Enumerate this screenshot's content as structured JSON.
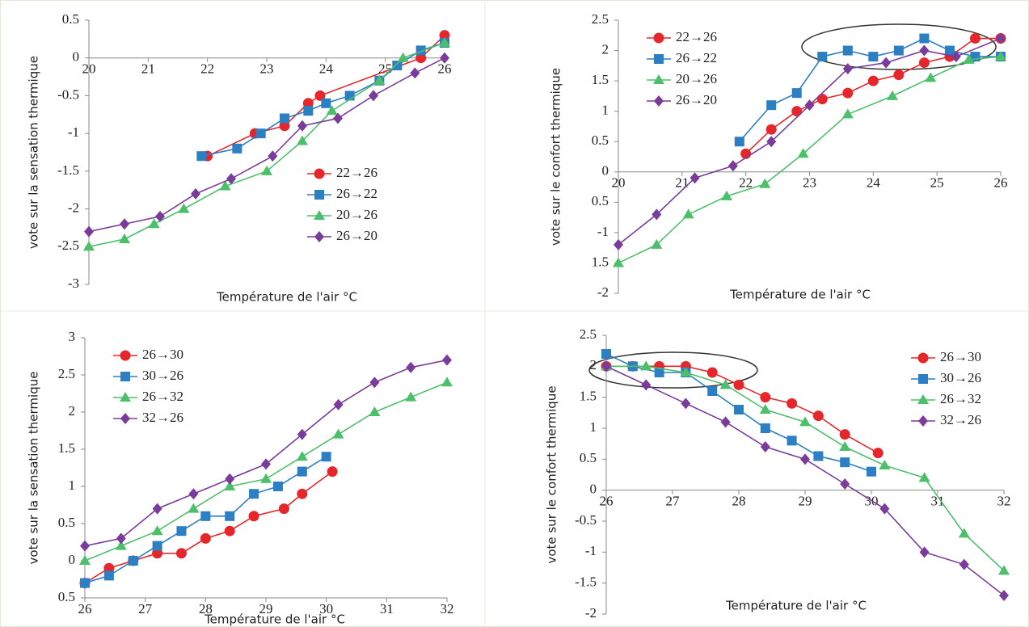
{
  "chart_data": [
    {
      "type": "line",
      "y_label": "vote sur la sensation thermique",
      "x_label": "Température de l'air °C",
      "xlim": [
        20,
        26
      ],
      "xticks": [
        20,
        21,
        22,
        23,
        24,
        25,
        26
      ],
      "ylim": [
        -3,
        0.5
      ],
      "yticks": [
        0.5,
        0,
        -0.5,
        -1,
        -1.5,
        -2,
        -2.5,
        -3
      ],
      "x_axis_at": 0,
      "legend": "lower right",
      "series": [
        {
          "name": "22→26",
          "color": "#e5262b",
          "marker": "circle",
          "x": [
            22,
            22.8,
            23.3,
            23.7,
            23.9,
            25.6,
            26
          ],
          "values": [
            -1.3,
            -1,
            -0.9,
            -0.6,
            -0.5,
            0,
            0.3
          ]
        },
        {
          "name": "26→22",
          "color": "#2b7fc2",
          "marker": "square",
          "x": [
            21.9,
            22.5,
            22.9,
            23.3,
            23.7,
            24,
            24.4,
            24.9,
            25.2,
            25.6,
            26
          ],
          "values": [
            -1.3,
            -1.2,
            -1,
            -0.8,
            -0.7,
            -0.6,
            -0.5,
            -0.3,
            -0.1,
            0.1,
            0.2
          ]
        },
        {
          "name": "20→26",
          "color": "#4cbf6b",
          "marker": "triangle",
          "x": [
            20,
            20.6,
            21.1,
            21.6,
            22.3,
            23,
            23.6,
            24.1,
            24.9,
            25.3,
            26
          ],
          "values": [
            -2.5,
            -2.4,
            -2.2,
            -2,
            -1.7,
            -1.5,
            -1.1,
            -0.7,
            -0.3,
            0,
            0.2
          ]
        },
        {
          "name": "26→20",
          "color": "#7a3c9a",
          "marker": "diamond",
          "x": [
            20,
            20.6,
            21.2,
            21.8,
            22.4,
            23.1,
            23.6,
            24.2,
            24.8,
            25.5,
            26
          ],
          "values": [
            -2.3,
            -2.2,
            -2.1,
            -1.8,
            -1.6,
            -1.3,
            -0.9,
            -0.8,
            -0.5,
            -0.2,
            0
          ]
        }
      ]
    },
    {
      "type": "line",
      "y_label": "vote sur le confort thermique",
      "x_label": "Température de l'air °C",
      "xlim": [
        20,
        26
      ],
      "xticks": [
        20,
        21,
        22,
        23,
        24,
        25,
        26
      ],
      "ylim": [
        -2,
        2.5
      ],
      "yticks": [
        2.5,
        2,
        1.5,
        1,
        0.5,
        0,
        {
          "value": -0.5,
          "label": "0.5"
        },
        -1,
        {
          "value": -1.5,
          "label": "1.5"
        },
        -2
      ],
      "x_axis_at": 0,
      "legend": "upper left",
      "series": [
        {
          "name": "22→26",
          "color": "#e5262b",
          "marker": "circle",
          "x": [
            22,
            22.4,
            22.8,
            23.2,
            23.6,
            24,
            24.4,
            24.8,
            25.2,
            25.6,
            26
          ],
          "values": [
            0.3,
            0.7,
            1,
            1.2,
            1.3,
            1.5,
            1.6,
            1.8,
            1.9,
            2.2,
            2.2
          ]
        },
        {
          "name": "26→22",
          "color": "#2b7fc2",
          "marker": "square",
          "x": [
            21.9,
            22.4,
            22.8,
            23.2,
            23.6,
            24,
            24.4,
            24.8,
            25.2,
            25.6,
            26
          ],
          "values": [
            0.5,
            1.1,
            1.3,
            1.9,
            2,
            1.9,
            2,
            2.2,
            2,
            1.9,
            1.9
          ]
        },
        {
          "name": "20→26",
          "color": "#4cbf6b",
          "marker": "triangle",
          "x": [
            20,
            20.6,
            21.1,
            21.7,
            22.3,
            22.9,
            23.6,
            24.3,
            24.9,
            25.5,
            26
          ],
          "values": [
            -1.5,
            -1.2,
            -0.7,
            -0.4,
            -0.2,
            0.3,
            0.95,
            1.25,
            1.55,
            1.85,
            1.9
          ]
        },
        {
          "name": "26→20",
          "color": "#7a3c9a",
          "marker": "diamond",
          "x": [
            20,
            20.6,
            21.2,
            21.8,
            22.4,
            23,
            23.6,
            24.2,
            24.8,
            25.3,
            26
          ],
          "values": [
            -1.2,
            -0.7,
            -0.1,
            0.1,
            0.5,
            1.1,
            1.7,
            1.8,
            2,
            1.9,
            2.2
          ]
        }
      ]
    },
    {
      "type": "line",
      "y_label": "vote sur la sensation thermique",
      "x_label": "Température de l'air °C",
      "xlim": [
        26,
        32
      ],
      "xticks": [
        26,
        27,
        28,
        29,
        30,
        31,
        32
      ],
      "ylim": [
        -0.5,
        3
      ],
      "yticks": [
        3,
        2.5,
        2,
        1.5,
        1,
        0.5,
        0,
        {
          "value": -0.5,
          "label": "0.5"
        }
      ],
      "legend": "upper left",
      "series": [
        {
          "name": "26→30",
          "color": "#e5262b",
          "marker": "circle",
          "x": [
            26,
            26.4,
            26.8,
            27.2,
            27.6,
            28,
            28.4,
            28.8,
            29.3,
            29.6,
            30.1
          ],
          "values": [
            -0.3,
            -0.1,
            0,
            0.1,
            0.1,
            0.3,
            0.4,
            0.6,
            0.7,
            0.9,
            1.2
          ]
        },
        {
          "name": "30→26",
          "color": "#2b7fc2",
          "marker": "square",
          "x": [
            26,
            26.4,
            26.8,
            27.2,
            27.6,
            28,
            28.4,
            28.8,
            29.2,
            29.6,
            30
          ],
          "values": [
            -0.3,
            -0.2,
            0,
            0.2,
            0.4,
            0.6,
            0.6,
            0.9,
            1,
            1.2,
            1.4
          ]
        },
        {
          "name": "26→32",
          "color": "#4cbf6b",
          "marker": "triangle",
          "x": [
            26,
            26.6,
            27.2,
            27.8,
            28.4,
            29,
            29.6,
            30.2,
            30.8,
            31.4,
            32
          ],
          "values": [
            0,
            0.2,
            0.4,
            0.7,
            1,
            1.1,
            1.4,
            1.7,
            2,
            2.2,
            2.4
          ]
        },
        {
          "name": "32→26",
          "color": "#7a3c9a",
          "marker": "diamond",
          "x": [
            26,
            26.6,
            27.2,
            27.8,
            28.4,
            29,
            29.6,
            30.2,
            30.8,
            31.4,
            32
          ],
          "values": [
            0.2,
            0.3,
            0.7,
            0.9,
            1.1,
            1.3,
            1.7,
            2.1,
            2.4,
            2.6,
            2.7
          ]
        }
      ]
    },
    {
      "type": "line",
      "y_label": "vote sur le confort thermique",
      "x_label": "Température de l'air °C",
      "xlim": [
        26,
        32
      ],
      "xticks": [
        26,
        27,
        28,
        29,
        30,
        31,
        32
      ],
      "ylim": [
        -2,
        2.5
      ],
      "yticks": [
        2.5,
        2,
        1.5,
        1,
        0.5,
        0,
        -0.5,
        -1,
        -1.5,
        -2
      ],
      "x_axis_at": 0,
      "legend": "upper right",
      "series": [
        {
          "name": "26→30",
          "color": "#e5262b",
          "marker": "circle",
          "x": [
            26,
            26.4,
            26.8,
            27.2,
            27.6,
            28,
            28.4,
            28.8,
            29.2,
            29.6,
            30.1
          ],
          "values": [
            2,
            2,
            2,
            2,
            1.9,
            1.7,
            1.5,
            1.4,
            1.2,
            0.9,
            0.6
          ]
        },
        {
          "name": "30→26",
          "color": "#2b7fc2",
          "marker": "square",
          "x": [
            26,
            26.4,
            26.8,
            27.2,
            27.6,
            28,
            28.4,
            28.8,
            29.2,
            29.6,
            30
          ],
          "values": [
            2.2,
            2,
            1.9,
            1.9,
            1.6,
            1.3,
            1,
            0.8,
            0.55,
            0.45,
            0.3
          ]
        },
        {
          "name": "26→32",
          "color": "#4cbf6b",
          "marker": "triangle",
          "x": [
            26,
            26.6,
            27.2,
            27.8,
            28.4,
            29,
            29.6,
            30.2,
            30.8,
            31.4,
            32
          ],
          "values": [
            2,
            2,
            1.9,
            1.7,
            1.3,
            1.1,
            0.7,
            0.4,
            0.2,
            -0.7,
            -1.3
          ]
        },
        {
          "name": "32→26",
          "color": "#7a3c9a",
          "marker": "diamond",
          "x": [
            26,
            26.6,
            27.2,
            27.8,
            28.4,
            29,
            29.6,
            30.2,
            30.8,
            31.4,
            32
          ],
          "values": [
            2,
            1.7,
            1.4,
            1.1,
            0.7,
            0.5,
            0.1,
            -0.3,
            -1,
            -1.2,
            -1.7
          ]
        }
      ]
    }
  ]
}
